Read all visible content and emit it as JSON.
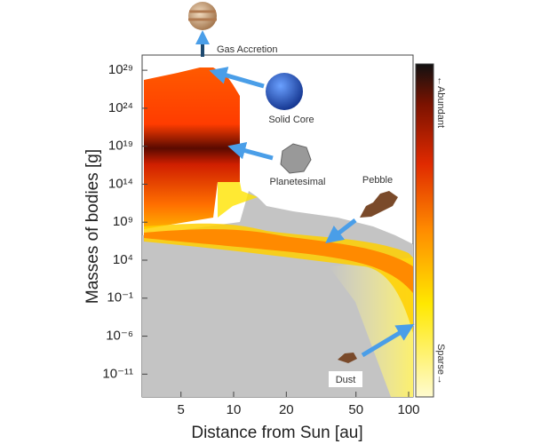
{
  "chart_data": {
    "type": "heatmap",
    "xlabel": "Distance from Sun [au]",
    "ylabel": "Masses of bodies  [g]",
    "xscale": "log",
    "yscale": "log",
    "xlim": [
      3,
      106
    ],
    "xticks": [
      5,
      10,
      20,
      50,
      100
    ],
    "ylim": [
      1e-14,
      1e+31
    ],
    "yticks": [
      {
        "value": 1e-11,
        "label": "10⁻¹¹"
      },
      {
        "value": 1e-06,
        "label": "10⁻⁶"
      },
      {
        "value": 0.1,
        "label": "10⁻¹"
      },
      {
        "value": 10000.0,
        "label": "10⁴"
      },
      {
        "value": 1000000000.0,
        "label": "10⁹"
      },
      {
        "value": 100000000000000.0,
        "label": "10¹⁴"
      },
      {
        "value": 1e+19,
        "label": "10¹⁹"
      },
      {
        "value": 1e+24,
        "label": "10²⁴"
      },
      {
        "value": 1e+29,
        "label": "10²⁹"
      }
    ],
    "colorbar": {
      "top_label": "←Abundant",
      "bottom_label": "Sparse→"
    },
    "annotations": [
      "Gas Accretion",
      "Solid Core",
      "Planetesimal",
      "Pebble",
      "Dust"
    ]
  }
}
